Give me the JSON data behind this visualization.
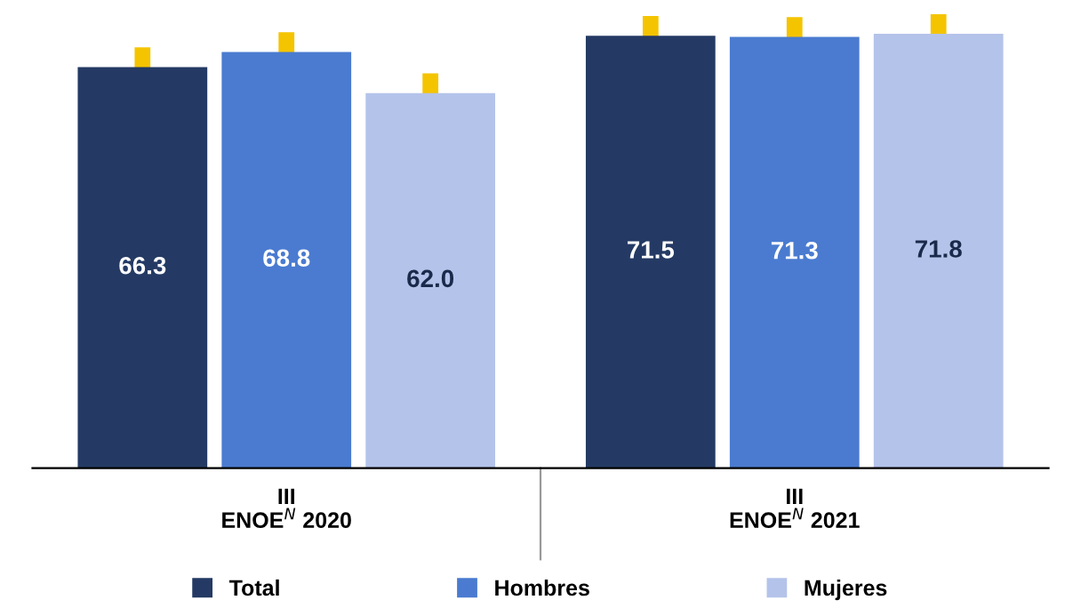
{
  "chart_data": {
    "type": "bar",
    "categories": [
      "III\nENOE$^{N}$ 2020",
      "III\nENOE$^{N}$ 2021"
    ],
    "series": [
      {
        "name": "Total",
        "color": "#243a64",
        "values": [
          66.3,
          71.5
        ],
        "value_labels": [
          "66.3",
          "71.5"
        ]
      },
      {
        "name": "Hombres",
        "color": "#4a7bd0",
        "values": [
          68.8,
          71.3
        ],
        "value_labels": [
          "68.8",
          "71.3"
        ]
      },
      {
        "name": "Mujeres",
        "color": "#b4c3ea",
        "values": [
          62.0,
          71.8
        ],
        "value_labels": [
          "62.0",
          "71.8"
        ]
      }
    ],
    "legend": "bottom",
    "tick_labels": "x"
  }
}
